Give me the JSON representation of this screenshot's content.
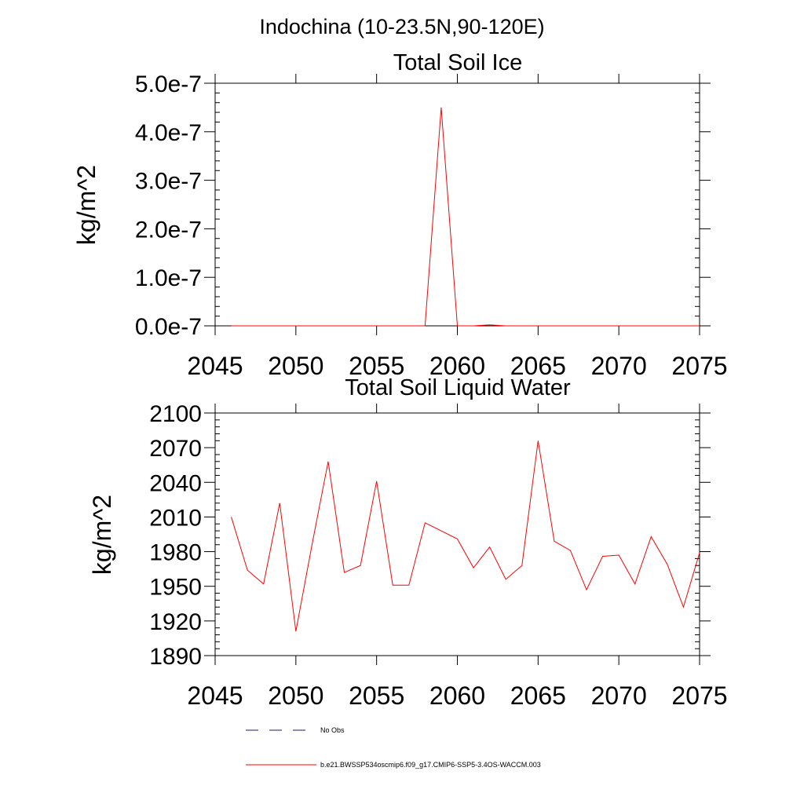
{
  "page": {
    "region_title": "Indochina (10-23.5N,90-120E)"
  },
  "legend": {
    "obs_label": "No Obs",
    "model_label": "b.e21.BWSSP534oscmip6.f09_g17.CMIP6-SSP5-3.4OS-WACCM.003",
    "obs_color": "#1a1a6e",
    "model_color": "#ff0000"
  },
  "chart_data": [
    {
      "type": "line",
      "title": "Total Soil Ice",
      "ylabel": "kg/m^2",
      "xlabel": "",
      "xlim": [
        2045,
        2075
      ],
      "ylim": [
        0,
        5e-07
      ],
      "xticks": [
        2045,
        2050,
        2055,
        2060,
        2065,
        2070,
        2075
      ],
      "xtick_labels": [
        "2045",
        "2050",
        "2055",
        "2060",
        "2065",
        "2070",
        "2075"
      ],
      "yticks": [
        0,
        1e-07,
        2e-07,
        3e-07,
        4e-07,
        5e-07
      ],
      "ytick_labels": [
        "0.0e-7",
        "1.0e-7",
        "2.0e-7",
        "3.0e-7",
        "4.0e-7",
        "5.0e-7"
      ],
      "grid": false,
      "series": [
        {
          "color": "#ff0000",
          "x": [
            2046,
            2047,
            2048,
            2049,
            2050,
            2051,
            2052,
            2053,
            2054,
            2055,
            2056,
            2057,
            2058,
            2059,
            2060,
            2061,
            2062,
            2063,
            2064,
            2065,
            2066,
            2067,
            2068,
            2069,
            2070,
            2071,
            2072,
            2073,
            2074,
            2075
          ],
          "y": [
            0,
            0,
            0,
            0,
            0,
            0,
            0,
            0,
            0,
            0,
            0,
            0,
            0,
            4.5e-07,
            0,
            0,
            2e-09,
            0,
            0,
            0,
            0,
            0,
            0,
            0,
            0,
            0,
            0,
            0,
            0,
            0
          ]
        }
      ]
    },
    {
      "type": "line",
      "title": "Total Soil Liquid Water",
      "ylabel": "kg/m^2",
      "xlabel": "",
      "xlim": [
        2045,
        2075
      ],
      "ylim": [
        1890,
        2100
      ],
      "xticks": [
        2045,
        2050,
        2055,
        2060,
        2065,
        2070,
        2075
      ],
      "xtick_labels": [
        "2045",
        "2050",
        "2055",
        "2060",
        "2065",
        "2070",
        "2075"
      ],
      "yticks": [
        1890,
        1920,
        1950,
        1980,
        2010,
        2040,
        2070,
        2100
      ],
      "ytick_labels": [
        "1890",
        "1920",
        "1950",
        "1980",
        "2010",
        "2040",
        "2070",
        "2100"
      ],
      "grid": false,
      "series": [
        {
          "color": "#ff0000",
          "x": [
            2046,
            2047,
            2048,
            2049,
            2050,
            2051,
            2052,
            2053,
            2054,
            2055,
            2056,
            2057,
            2058,
            2059,
            2060,
            2061,
            2062,
            2063,
            2064,
            2065,
            2066,
            2067,
            2068,
            2069,
            2070,
            2071,
            2072,
            2073,
            2074,
            2075
          ],
          "y": [
            2010,
            1964,
            1952,
            2022,
            1911,
            1986,
            2058,
            1962,
            1968,
            2041,
            1951,
            1951,
            2005,
            1998,
            1991,
            1966,
            1984,
            1956,
            1968,
            2076,
            1989,
            1981,
            1947,
            1976,
            1977,
            1952,
            1993,
            1969,
            1932,
            1979
          ]
        }
      ]
    }
  ]
}
